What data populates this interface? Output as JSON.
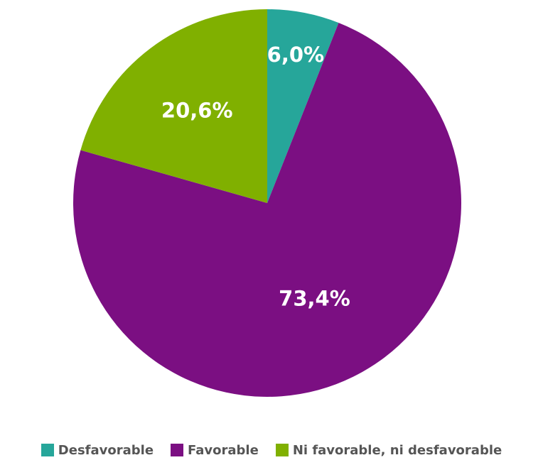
{
  "chart_data": {
    "type": "pie",
    "slices": [
      {
        "label": "Desfavorable",
        "value": 6.0,
        "value_label": "6,0%",
        "color": "#26A69A"
      },
      {
        "label": "Favorable",
        "value": 73.4,
        "value_label": "73,4%",
        "color": "#7B0F82"
      },
      {
        "label": "Ni favorable, ni desfavorable",
        "value": 20.6,
        "value_label": "20,6%",
        "color": "#80B000"
      }
    ],
    "legend_position": "bottom"
  }
}
